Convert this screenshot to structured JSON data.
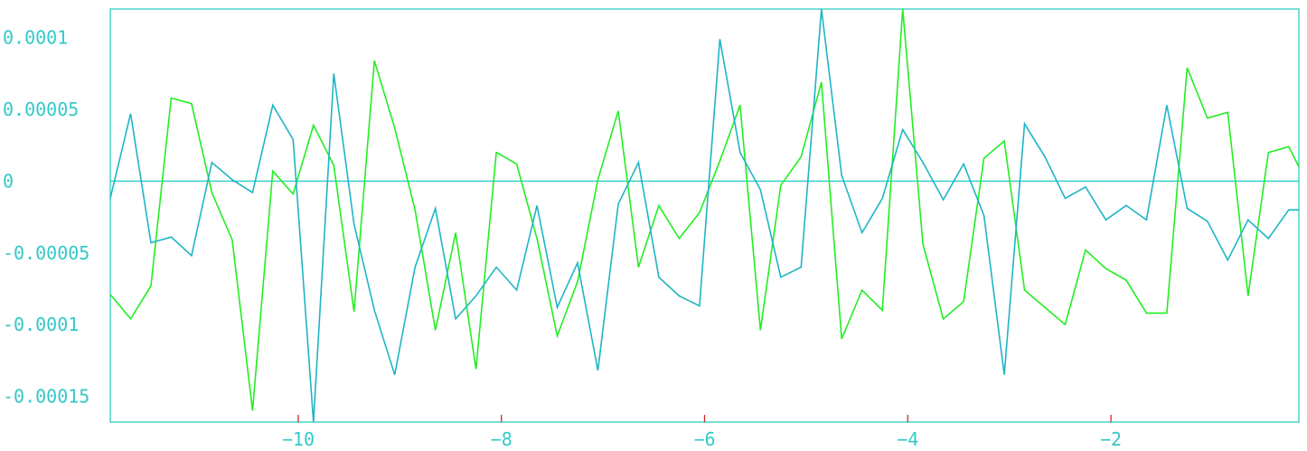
{
  "colors": {
    "axis": "#2bcfc0",
    "label": "#33c9c9",
    "tick": "#d62828",
    "series_green": "#22ee22",
    "series_cyan": "#1fb5c5",
    "background": "#ffffff"
  },
  "chart_data": {
    "type": "line",
    "title": "",
    "xlabel": "",
    "ylabel": "",
    "xlim": [
      -11.85,
      -0.15
    ],
    "ylim": [
      -0.000168,
      0.00012
    ],
    "grid": false,
    "zero_line": true,
    "x_ticks": [
      {
        "value": -10,
        "label": "−10"
      },
      {
        "value": -8,
        "label": "−8"
      },
      {
        "value": -6,
        "label": "−6"
      },
      {
        "value": -4,
        "label": "−4"
      },
      {
        "value": -2,
        "label": "−2"
      }
    ],
    "y_ticks": [
      {
        "value": 0.0001,
        "label": "0.0001"
      },
      {
        "value": 5e-05,
        "label": "0.00005"
      },
      {
        "value": 0,
        "label": "0"
      },
      {
        "value": -5e-05,
        "label": "-0.00005"
      },
      {
        "value": -0.0001,
        "label": "-0.0001"
      },
      {
        "value": -0.00015,
        "label": "-0.00015"
      }
    ],
    "x": [
      -11.85,
      -11.65,
      -11.45,
      -11.25,
      -11.05,
      -10.85,
      -10.65,
      -10.45,
      -10.25,
      -10.05,
      -9.85,
      -9.65,
      -9.45,
      -9.25,
      -9.05,
      -8.85,
      -8.65,
      -8.45,
      -8.25,
      -8.05,
      -7.85,
      -7.65,
      -7.45,
      -7.25,
      -7.05,
      -6.85,
      -6.65,
      -6.45,
      -6.25,
      -6.05,
      -5.85,
      -5.65,
      -5.45,
      -5.25,
      -5.05,
      -4.85,
      -4.65,
      -4.45,
      -4.25,
      -4.05,
      -3.85,
      -3.65,
      -3.45,
      -3.25,
      -3.05,
      -2.85,
      -2.65,
      -2.45,
      -2.25,
      -2.05,
      -1.85,
      -1.65,
      -1.45,
      -1.25,
      -1.05,
      -0.85,
      -0.65,
      -0.45,
      -0.25,
      -0.15
    ],
    "series": [
      {
        "color_key": "series_green",
        "values": [
          -7.9e-05,
          -9.6e-05,
          -7.3e-05,
          5.8e-05,
          5.4e-05,
          -8e-06,
          -4.1e-05,
          -0.00016,
          7e-06,
          -9e-06,
          3.9e-05,
          1.1e-05,
          -9.1e-05,
          8.4e-05,
          3.7e-05,
          -2e-05,
          -0.000104,
          -3.6e-05,
          -0.000131,
          2e-05,
          1.2e-05,
          -4e-05,
          -0.000108,
          -7e-05,
          1e-06,
          4.9e-05,
          -6e-05,
          -1.7e-05,
          -4e-05,
          -2.2e-05,
          1.4e-05,
          5.3e-05,
          -0.000104,
          -3e-06,
          1.7e-05,
          6.9e-05,
          -0.00011,
          -7.6e-05,
          -9e-05,
          0.00012,
          -4.4e-05,
          -9.6e-05,
          -8.4e-05,
          1.6e-05,
          2.8e-05,
          -7.6e-05,
          -8.8e-05,
          -0.0001,
          -4.8e-05,
          -6.1e-05,
          -6.9e-05,
          -9.2e-05,
          -9.2e-05,
          7.9e-05,
          4.4e-05,
          4.8e-05,
          -8e-05,
          2e-05,
          2.4e-05,
          1e-05
        ]
      },
      {
        "color_key": "series_cyan",
        "values": [
          -1.2e-05,
          4.7e-05,
          -4.3e-05,
          -3.9e-05,
          -5.2e-05,
          1.3e-05,
          1e-06,
          -8e-06,
          5.3e-05,
          2.9e-05,
          -0.000168,
          7.5e-05,
          -3e-05,
          -9e-05,
          -0.000135,
          -6e-05,
          -1.9e-05,
          -9.6e-05,
          -8e-05,
          -6e-05,
          -7.6e-05,
          -1.7e-05,
          -8.8e-05,
          -5.7e-05,
          -0.000132,
          -1.6e-05,
          1.3e-05,
          -6.7e-05,
          -8e-05,
          -8.7e-05,
          9.9e-05,
          2e-05,
          -6e-06,
          -6.7e-05,
          -6e-05,
          0.00012,
          4e-06,
          -3.6e-05,
          -1.2e-05,
          3.6e-05,
          1.3e-05,
          -1.3e-05,
          1.2e-05,
          -2.4e-05,
          -0.000135,
          4e-05,
          1.7e-05,
          -1.2e-05,
          -4e-06,
          -2.7e-05,
          -1.7e-05,
          -2.7e-05,
          5.3e-05,
          -1.9e-05,
          -2.8e-05,
          -5.5e-05,
          -2.7e-05,
          -4e-05,
          -2e-05,
          -2e-05
        ]
      }
    ]
  }
}
